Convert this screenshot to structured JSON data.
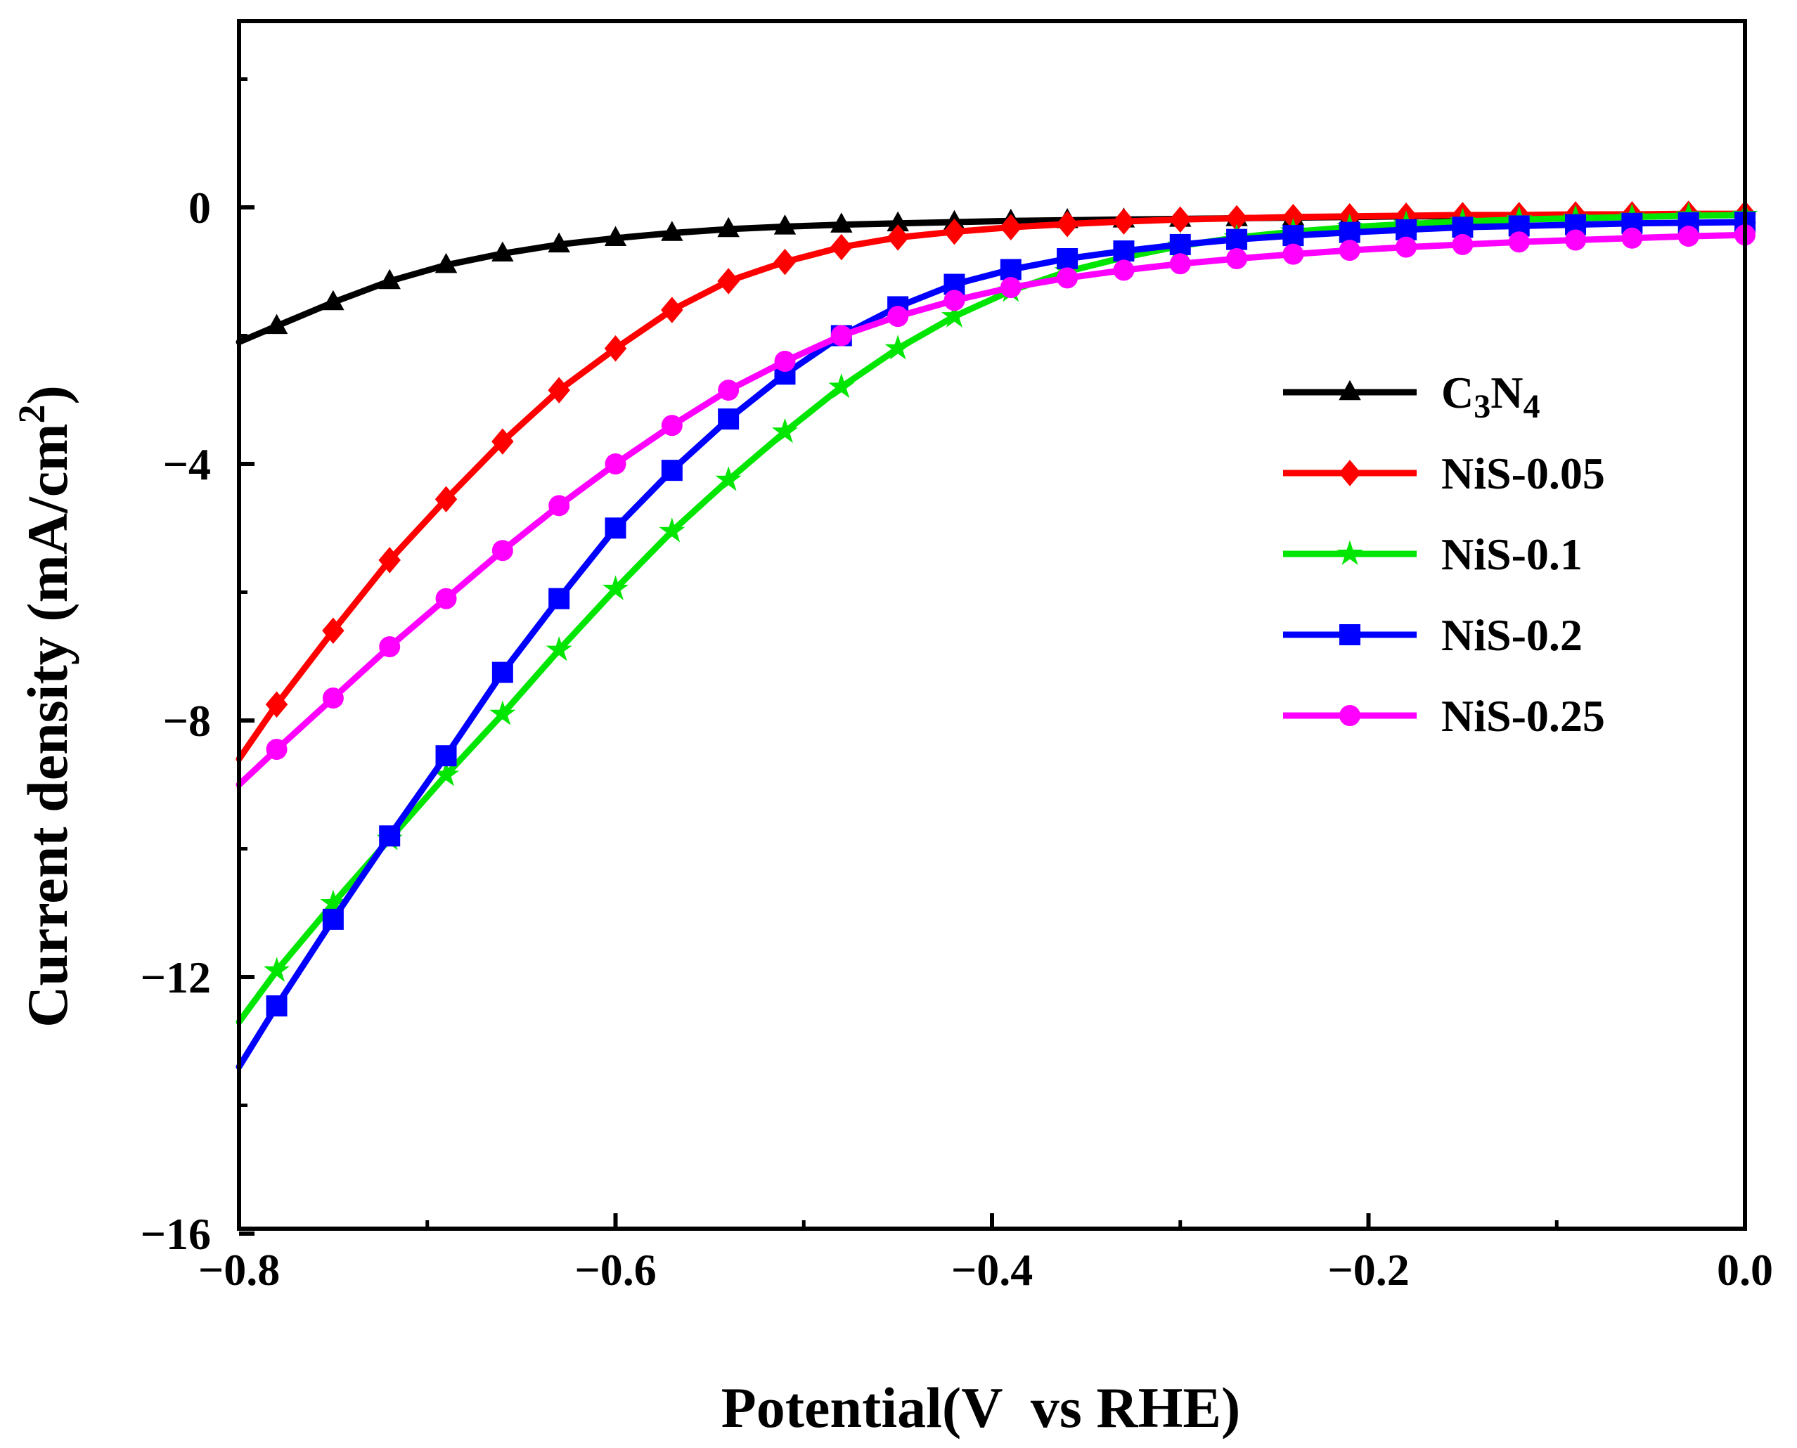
{
  "chart_data": {
    "type": "line",
    "title": "",
    "xlabel": "Potential(V  vs RHE)",
    "ylabel": "Current density (mA/cm²)",
    "ylabel_parts": {
      "main": "Current density (mA/cm",
      "sup": "2",
      "end": ")"
    },
    "xlim": [
      -0.8,
      0.0
    ],
    "ylim": [
      -16,
      2.5
    ],
    "x_ticks": [
      -0.8,
      -0.6,
      -0.4,
      -0.2,
      0.0
    ],
    "x_tick_labels": [
      "−0.8",
      "−0.6",
      "−0.4",
      "−0.2",
      "0.0"
    ],
    "y_ticks": [
      0,
      -4,
      -8,
      -12,
      -16
    ],
    "y_tick_labels": [
      "0",
      "−4",
      "−8",
      "−12",
      "−16"
    ],
    "grid": false,
    "legend_position": "right",
    "series": [
      {
        "name": "C3N4",
        "label_parts": [
          "C",
          "3",
          "N",
          "4"
        ],
        "color": "#000000",
        "marker": "triangle",
        "x": [
          -0.8,
          -0.78,
          -0.75,
          -0.72,
          -0.69,
          -0.66,
          -0.63,
          -0.6,
          -0.57,
          -0.54,
          -0.51,
          -0.48,
          -0.45,
          -0.42,
          -0.39,
          -0.36,
          -0.33,
          -0.3,
          -0.27,
          -0.24,
          -0.21,
          -0.18,
          -0.15,
          -0.12,
          -0.09,
          -0.06,
          -0.03,
          0.0
        ],
        "y": [
          -2.1,
          -1.85,
          -1.48,
          -1.15,
          -0.9,
          -0.72,
          -0.58,
          -0.48,
          -0.4,
          -0.34,
          -0.3,
          -0.27,
          -0.25,
          -0.23,
          -0.21,
          -0.2,
          -0.19,
          -0.18,
          -0.17,
          -0.16,
          -0.15,
          -0.14,
          -0.14,
          -0.13,
          -0.13,
          -0.12,
          -0.12,
          -0.12
        ]
      },
      {
        "name": "NiS-0.05",
        "color": "#ff0000",
        "marker": "diamond",
        "x": [
          -0.8,
          -0.78,
          -0.75,
          -0.72,
          -0.69,
          -0.66,
          -0.63,
          -0.6,
          -0.57,
          -0.54,
          -0.51,
          -0.48,
          -0.45,
          -0.42,
          -0.39,
          -0.36,
          -0.33,
          -0.3,
          -0.27,
          -0.24,
          -0.21,
          -0.18,
          -0.15,
          -0.12,
          -0.09,
          -0.06,
          -0.03,
          0.0
        ],
        "y": [
          -8.6,
          -7.75,
          -6.6,
          -5.5,
          -4.55,
          -3.65,
          -2.85,
          -2.2,
          -1.6,
          -1.15,
          -0.85,
          -0.62,
          -0.47,
          -0.38,
          -0.31,
          -0.26,
          -0.22,
          -0.19,
          -0.17,
          -0.15,
          -0.14,
          -0.13,
          -0.12,
          -0.12,
          -0.11,
          -0.11,
          -0.1,
          -0.1
        ]
      },
      {
        "name": "NiS-0.1",
        "color": "#00e600",
        "marker": "star",
        "x": [
          -0.8,
          -0.78,
          -0.75,
          -0.72,
          -0.69,
          -0.66,
          -0.63,
          -0.6,
          -0.57,
          -0.54,
          -0.51,
          -0.48,
          -0.45,
          -0.42,
          -0.39,
          -0.36,
          -0.33,
          -0.3,
          -0.27,
          -0.24,
          -0.21,
          -0.18,
          -0.15,
          -0.12,
          -0.09,
          -0.06,
          -0.03,
          0.0
        ],
        "y": [
          -12.7,
          -11.9,
          -10.85,
          -9.85,
          -8.85,
          -7.9,
          -6.9,
          -5.95,
          -5.05,
          -4.25,
          -3.5,
          -2.8,
          -2.2,
          -1.7,
          -1.3,
          -1.0,
          -0.78,
          -0.6,
          -0.47,
          -0.38,
          -0.31,
          -0.26,
          -0.22,
          -0.19,
          -0.17,
          -0.15,
          -0.13,
          -0.12
        ]
      },
      {
        "name": "NiS-0.2",
        "color": "#0000ff",
        "marker": "square",
        "x": [
          -0.8,
          -0.78,
          -0.75,
          -0.72,
          -0.69,
          -0.66,
          -0.63,
          -0.6,
          -0.57,
          -0.54,
          -0.51,
          -0.48,
          -0.45,
          -0.42,
          -0.39,
          -0.36,
          -0.33,
          -0.3,
          -0.27,
          -0.24,
          -0.21,
          -0.18,
          -0.15,
          -0.12,
          -0.09,
          -0.06,
          -0.03,
          0.0
        ],
        "y": [
          -13.4,
          -12.45,
          -11.1,
          -9.8,
          -8.55,
          -7.25,
          -6.1,
          -5.0,
          -4.1,
          -3.3,
          -2.6,
          -2.0,
          -1.55,
          -1.2,
          -0.97,
          -0.8,
          -0.68,
          -0.58,
          -0.5,
          -0.44,
          -0.39,
          -0.35,
          -0.31,
          -0.29,
          -0.27,
          -0.25,
          -0.24,
          -0.23
        ]
      },
      {
        "name": "NiS-0.25",
        "color": "#ff00ff",
        "marker": "circle",
        "x": [
          -0.8,
          -0.78,
          -0.75,
          -0.72,
          -0.69,
          -0.66,
          -0.63,
          -0.6,
          -0.57,
          -0.54,
          -0.51,
          -0.48,
          -0.45,
          -0.42,
          -0.39,
          -0.36,
          -0.33,
          -0.3,
          -0.27,
          -0.24,
          -0.21,
          -0.18,
          -0.15,
          -0.12,
          -0.09,
          -0.06,
          -0.03,
          0.0
        ],
        "y": [
          -9.0,
          -8.45,
          -7.65,
          -6.85,
          -6.1,
          -5.35,
          -4.65,
          -4.0,
          -3.4,
          -2.85,
          -2.4,
          -2.0,
          -1.7,
          -1.45,
          -1.25,
          -1.1,
          -0.98,
          -0.88,
          -0.8,
          -0.73,
          -0.67,
          -0.62,
          -0.58,
          -0.54,
          -0.51,
          -0.48,
          -0.45,
          -0.43
        ]
      }
    ]
  }
}
